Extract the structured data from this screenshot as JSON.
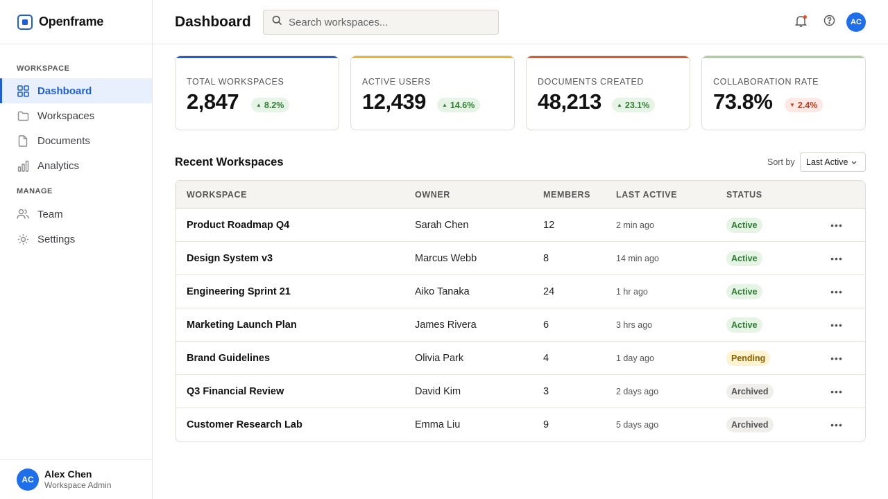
{
  "brand": {
    "name": "Openframe"
  },
  "sidebar": {
    "section_workspace": "WORKSPACE",
    "section_manage": "MANAGE",
    "items": [
      {
        "label": "Dashboard",
        "icon": "grid-icon"
      },
      {
        "label": "Workspaces",
        "icon": "folder-icon"
      },
      {
        "label": "Documents",
        "icon": "document-icon"
      },
      {
        "label": "Analytics",
        "icon": "bar-chart-icon"
      }
    ],
    "manage_items": [
      {
        "label": "Team",
        "icon": "users-icon"
      },
      {
        "label": "Settings",
        "icon": "gear-icon"
      }
    ],
    "user": {
      "initials": "AC",
      "name": "Alex Chen",
      "role": "Workspace Admin"
    }
  },
  "header": {
    "title": "Dashboard",
    "search_placeholder": "Search workspaces...",
    "avatar_initials": "AC"
  },
  "stats": [
    {
      "label": "TOTAL WORKSPACES",
      "value": "2,847",
      "delta": "8.2%",
      "direction": "up",
      "accent": "#1f5fd6"
    },
    {
      "label": "ACTIVE USERS",
      "value": "12,439",
      "delta": "14.6%",
      "direction": "up",
      "accent": "#f0b429"
    },
    {
      "label": "DOCUMENTS CREATED",
      "value": "48,213",
      "delta": "23.1%",
      "direction": "up",
      "accent": "#e05a2b"
    },
    {
      "label": "COLLABORATION RATE",
      "value": "73.8%",
      "delta": "2.4%",
      "direction": "down",
      "accent": "#a9d3a0"
    }
  ],
  "recent": {
    "title": "Recent Workspaces",
    "sort_label": "Sort by",
    "sort_value": "Last Active",
    "columns": [
      "WORKSPACE",
      "OWNER",
      "MEMBERS",
      "LAST ACTIVE",
      "STATUS"
    ],
    "rows": [
      {
        "name": "Product Roadmap Q4",
        "owner": "Sarah Chen",
        "members": "12",
        "last_active": "2 min ago",
        "status": "Active"
      },
      {
        "name": "Design System v3",
        "owner": "Marcus Webb",
        "members": "8",
        "last_active": "14 min ago",
        "status": "Active"
      },
      {
        "name": "Engineering Sprint 21",
        "owner": "Aiko Tanaka",
        "members": "24",
        "last_active": "1 hr ago",
        "status": "Active"
      },
      {
        "name": "Marketing Launch Plan",
        "owner": "James Rivera",
        "members": "6",
        "last_active": "3 hrs ago",
        "status": "Active"
      },
      {
        "name": "Brand Guidelines",
        "owner": "Olivia Park",
        "members": "4",
        "last_active": "1 day ago",
        "status": "Pending"
      },
      {
        "name": "Q3 Financial Review",
        "owner": "David Kim",
        "members": "3",
        "last_active": "2 days ago",
        "status": "Archived"
      },
      {
        "name": "Customer Research Lab",
        "owner": "Emma Liu",
        "members": "9",
        "last_active": "5 days ago",
        "status": "Archived"
      }
    ]
  }
}
